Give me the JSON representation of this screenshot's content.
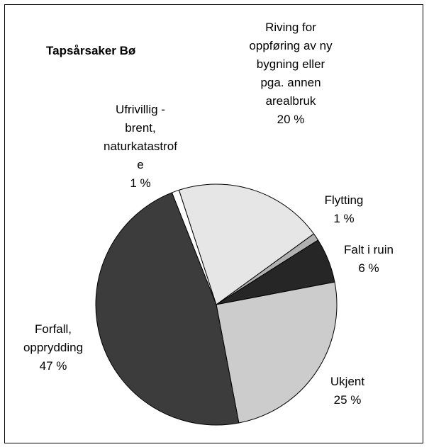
{
  "chart_data": {
    "type": "pie",
    "title": "Tapsårsaker Bø",
    "categories": [
      "Ufrivillig - brent, naturkatastrofe",
      "Riving for oppføring av ny bygning eller pga. annen arealbruk",
      "Flytting",
      "Falt i ruin",
      "Ukjent",
      "Forfall, opprydding"
    ],
    "values": [
      1,
      20,
      1,
      6,
      25,
      47
    ],
    "value_labels": [
      "1 %",
      "20 %",
      "1 %",
      "6 %",
      "25 %",
      "47 %"
    ],
    "colors": [
      "#ffffff",
      "#e6e6e6",
      "#b0b0b0",
      "#262626",
      "#cccccc",
      "#3c3c3c"
    ]
  }
}
